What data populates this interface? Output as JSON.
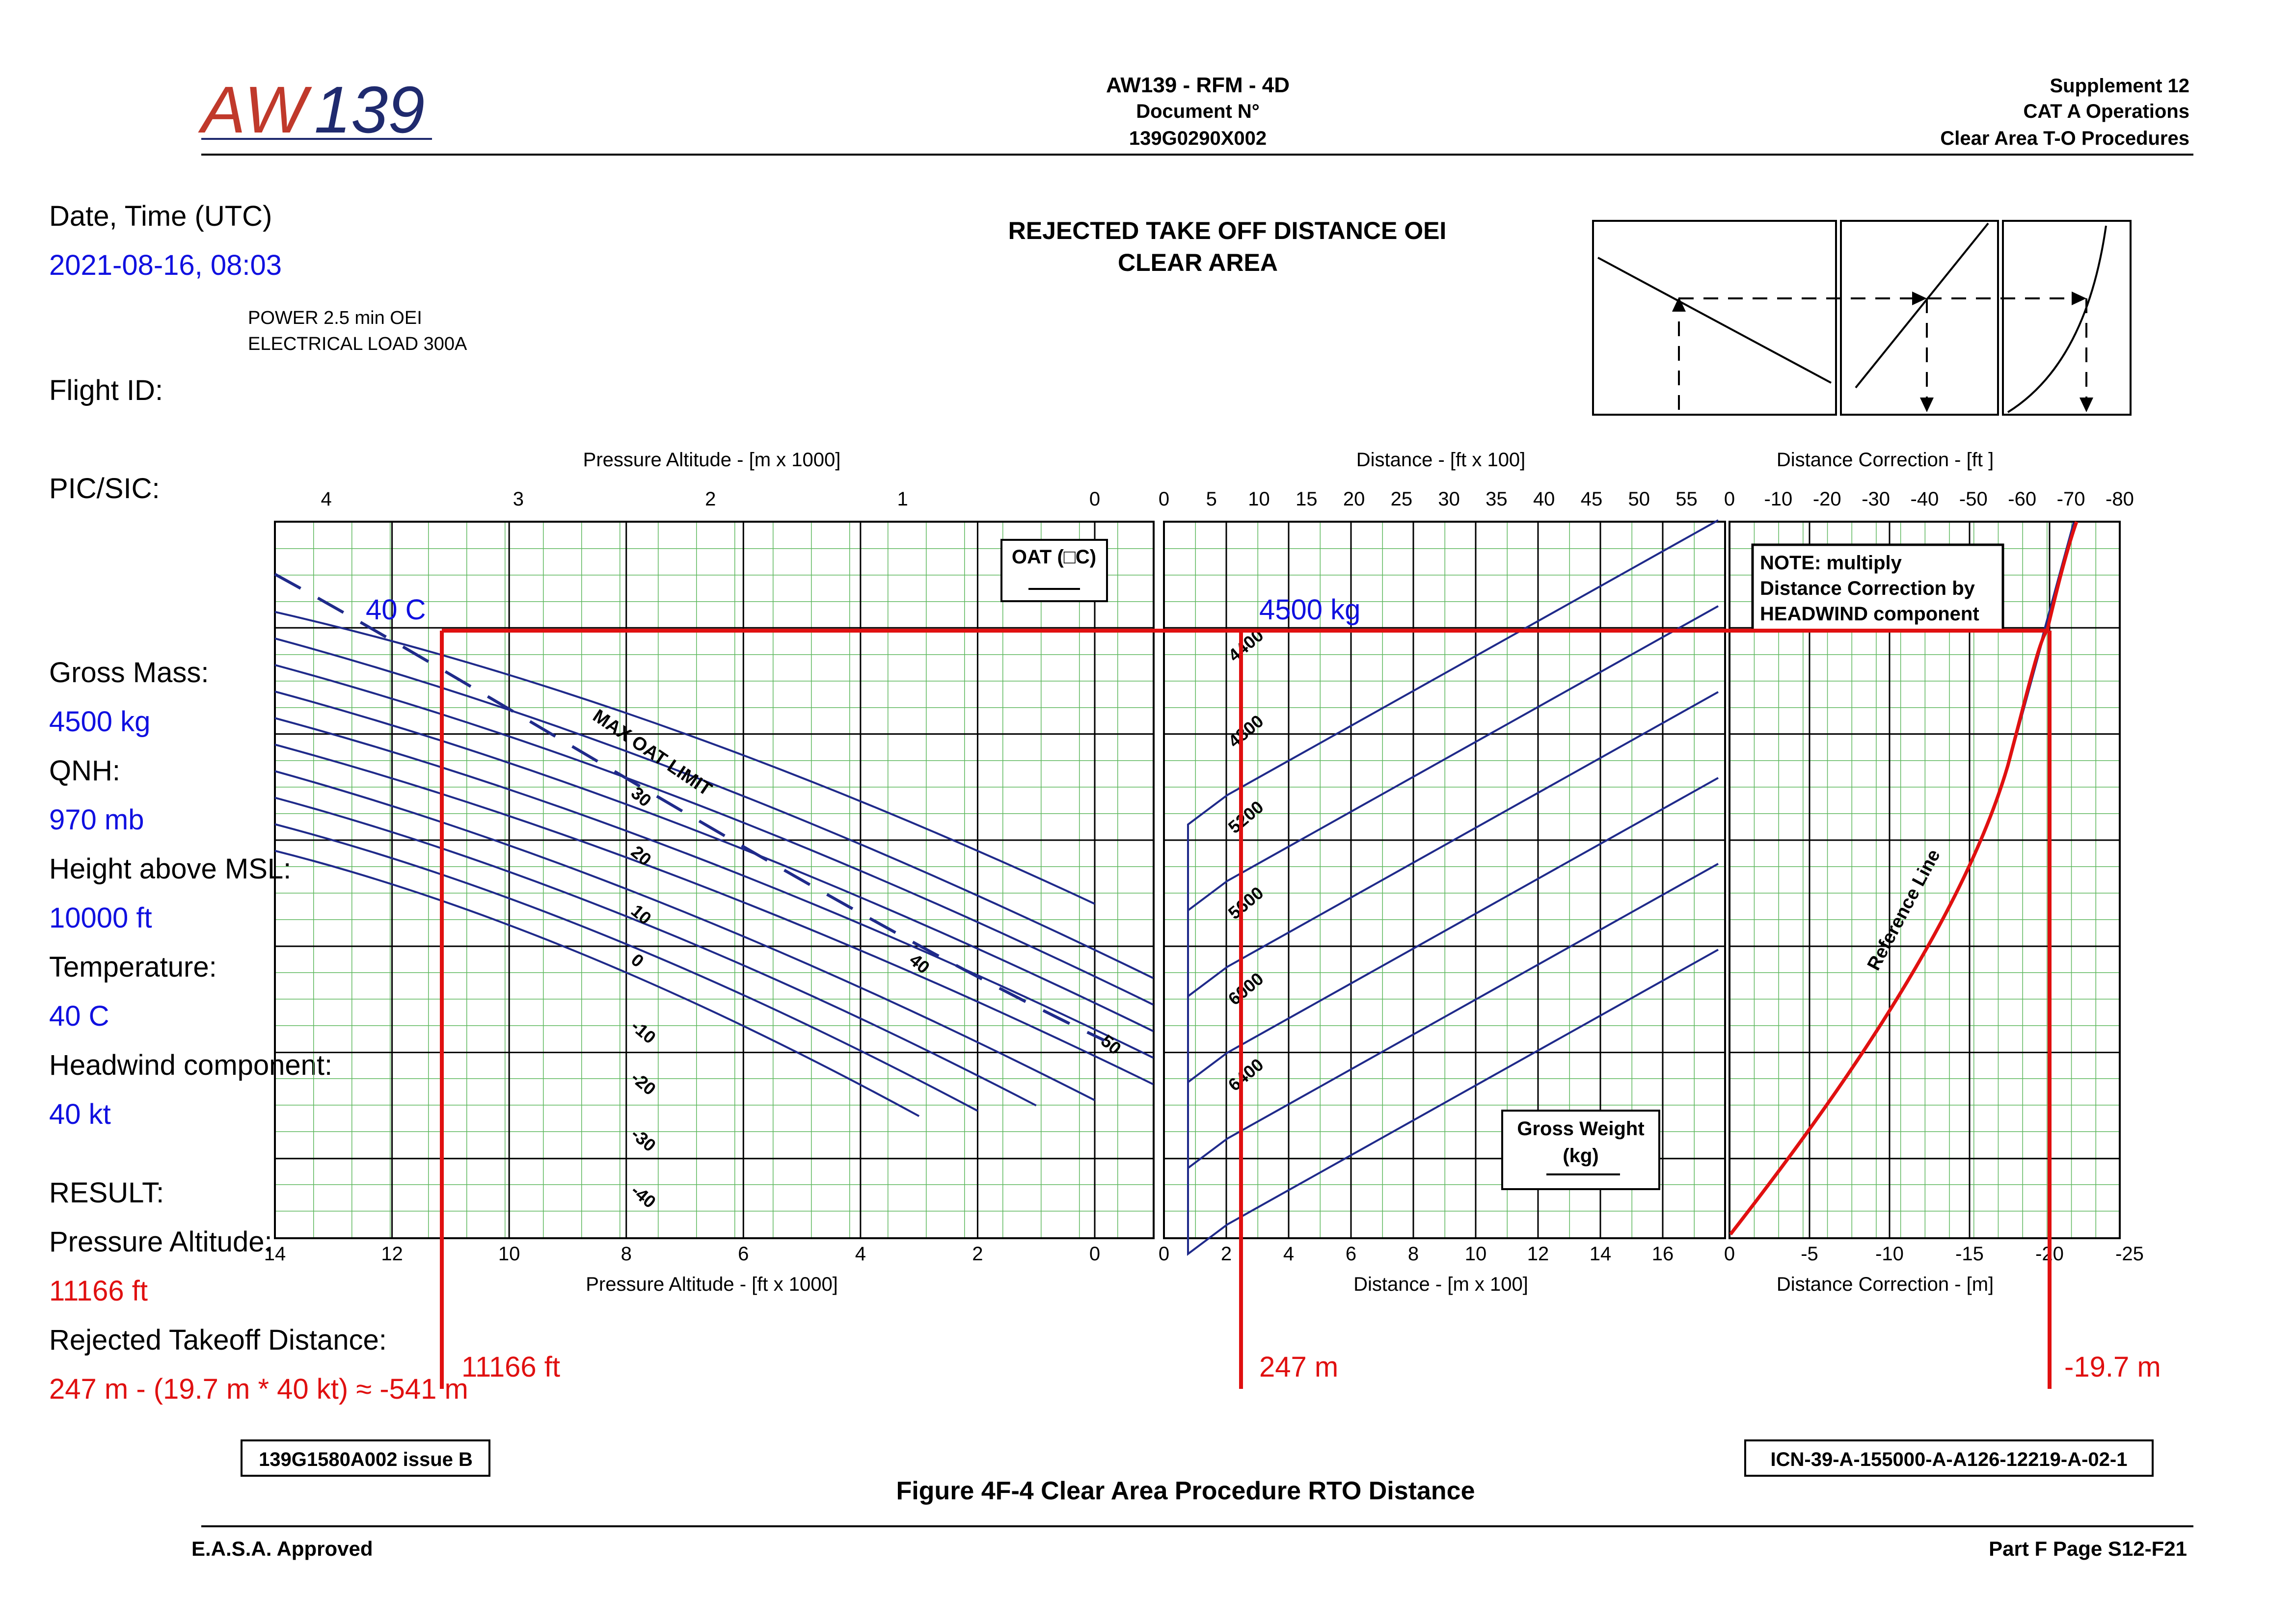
{
  "header": {
    "logo_prefix": "AW",
    "logo_suffix": "139",
    "doc_title": "AW139 - RFM - 4D",
    "doc_label": "Document N°",
    "doc_number": "139G0290X002",
    "supplement": "Supplement 12",
    "section": "CAT A Operations",
    "procedure": "Clear Area T-O Procedures"
  },
  "chart_title": [
    "REJECTED TAKE OFF DISTANCE OEI",
    "CLEAR AREA"
  ],
  "conditions": [
    "POWER 2.5 min OEI",
    "ELECTRICAL LOAD 300A"
  ],
  "inputs": [
    {
      "label": "Date, Time (UTC)",
      "value": "2021-08-16, 08:03"
    },
    {
      "label": "Flight ID:",
      "value": ""
    },
    {
      "label": "PIC/SIC:",
      "value": ""
    },
    {
      "label": "Gross Mass:",
      "value": "4500 kg"
    },
    {
      "label": "QNH:",
      "value": "970 mb"
    },
    {
      "label": "Height above MSL:",
      "value": "10000 ft"
    },
    {
      "label": "Temperature:",
      "value": "40 C"
    },
    {
      "label": "Headwind component:",
      "value": "40 kt"
    }
  ],
  "result": {
    "heading": "RESULT:",
    "pa_label": "Pressure Altitude:",
    "pa_value": "11166 ft",
    "rtod_label": "Rejected Takeoff Distance:",
    "rtod_value": "247 m - (19.7 m * 40 kt) ≈ -541 m"
  },
  "annotations": {
    "temp": "40 C",
    "mass": "4500 kg",
    "pa": "11166 ft",
    "dist": "247 m",
    "corr": "-19.7 m"
  },
  "footer": {
    "ref_left": "139G1580A002 issue B",
    "ref_right": "ICN-39-A-155000-A-A126-12219-A-02-1",
    "figure": "Figure 4F-4  Clear Area Procedure RTO Distance",
    "approval": "E.A.S.A. Approved",
    "page": "Part F Page S12-F21"
  },
  "colors": {
    "grid_green": "#5fb85f",
    "grid_black": "#000000",
    "curve": "#1f2a8a",
    "solution": "#e01010",
    "input_blue": "#1010e0",
    "logo_red": "#c0392b",
    "logo_blue": "#1f2a6e"
  },
  "chart_data": [
    {
      "type": "line",
      "panel": "pressure-altitude / OAT",
      "xlabel_top": "Pressure Altitude - [m x 1000]",
      "xticks_top": [
        "4",
        "3",
        "2",
        "1",
        "0"
      ],
      "xlabel_bottom": "Pressure Altitude - [ft x 1000]",
      "xticks_bottom": [
        "14",
        "12",
        "10",
        "8",
        "6",
        "4",
        "2",
        "0"
      ],
      "xlim_ft_k": [
        14,
        -1
      ],
      "legend_box": "OAT (□C)",
      "oat_labels": [
        "30",
        "20",
        "10",
        "0",
        "-10",
        "-20",
        "-30",
        "-40",
        "40",
        "50"
      ],
      "max_oat_label": "MAX OAT LIMIT",
      "series": [
        {
          "name": "50",
          "x": [
            14,
            0
          ],
          "y": [
            1.7,
            7.2
          ]
        },
        {
          "name": "40",
          "x": [
            14,
            -1
          ],
          "y": [
            2.2,
            8.6
          ]
        },
        {
          "name": "30",
          "x": [
            14,
            -1
          ],
          "y": [
            2.7,
            9.1
          ]
        },
        {
          "name": "20",
          "x": [
            14,
            -1
          ],
          "y": [
            3.2,
            9.6
          ]
        },
        {
          "name": "10",
          "x": [
            14,
            -1
          ],
          "y": [
            3.7,
            10.1
          ]
        },
        {
          "name": "0",
          "x": [
            14,
            -1
          ],
          "y": [
            4.2,
            10.6
          ]
        },
        {
          "name": "-10",
          "x": [
            14,
            0
          ],
          "y": [
            4.7,
            10.9
          ]
        },
        {
          "name": "-20",
          "x": [
            14,
            1
          ],
          "y": [
            5.2,
            11.0
          ]
        },
        {
          "name": "-30",
          "x": [
            14,
            2
          ],
          "y": [
            5.7,
            11.1
          ]
        },
        {
          "name": "-40",
          "x": [
            14,
            3
          ],
          "y": [
            6.2,
            11.2
          ]
        }
      ]
    },
    {
      "type": "line",
      "panel": "distance / gross weight",
      "xlabel_top": "Distance - [ft x 100]",
      "xticks_top": [
        "0",
        "5",
        "10",
        "15",
        "20",
        "25",
        "30",
        "35",
        "40",
        "45",
        "50",
        "55"
      ],
      "xlabel_bottom": "Distance - [m x 100]",
      "xticks_bottom": [
        "0",
        "2",
        "4",
        "6",
        "8",
        "10",
        "12",
        "14",
        "16"
      ],
      "xlim_m_100": [
        0,
        18
      ],
      "legend_box": [
        "Gross Weight",
        "(kg)"
      ],
      "series": [
        {
          "name": "4400",
          "x": [
            1.8,
            16.5
          ],
          "y": [
            3.0,
            10.0
          ]
        },
        {
          "name": "4800",
          "x": [
            1.8,
            16.5
          ],
          "y": [
            3.5,
            10.0
          ]
        },
        {
          "name": "5200",
          "x": [
            1.8,
            16.5
          ],
          "y": [
            4.5,
            10.5
          ]
        },
        {
          "name": "5600",
          "x": [
            1.8,
            16.5
          ],
          "y": [
            5.5,
            11.0
          ]
        },
        {
          "name": "6000",
          "x": [
            1.8,
            16.5
          ],
          "y": [
            6.5,
            11.5
          ]
        },
        {
          "name": "6400",
          "x": [
            1.8,
            16.5
          ],
          "y": [
            7.5,
            12.0
          ]
        }
      ]
    },
    {
      "type": "line",
      "panel": "distance correction",
      "xlabel_top": "Distance Correction - [ft ]",
      "xticks_top": [
        "0",
        "-10",
        "-20",
        "-30",
        "-40",
        "-50",
        "-60",
        "-70",
        "-80"
      ],
      "xlabel_bottom": "Distance Correction - [m]",
      "xticks_bottom": [
        "0",
        "-5",
        "-10",
        "-15",
        "-20",
        "-25"
      ],
      "xlim_m": [
        0,
        -25
      ],
      "note": [
        "NOTE: multiply",
        "Distance Correction by",
        "HEADWIND component"
      ],
      "series": [
        {
          "name": "Reference Line",
          "x": [
            0,
            -10,
            -16,
            -19.7,
            -21.5
          ],
          "y": [
            0,
            3,
            6,
            10,
            13
          ]
        }
      ]
    }
  ]
}
